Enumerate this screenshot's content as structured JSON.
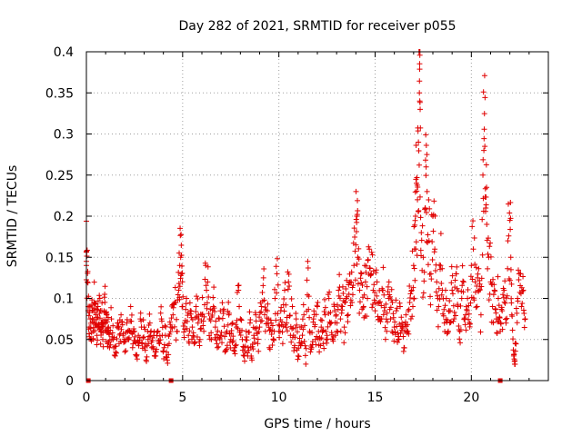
{
  "chart_data": {
    "type": "scatter",
    "title": "Day 282 of 2021, SRMTID for receiver p055",
    "xlabel": "GPS time / hours",
    "ylabel": "SRMTID / TECUs",
    "xlim": [
      0,
      24
    ],
    "ylim": [
      0,
      0.4
    ],
    "x_ticks": [
      0,
      5,
      10,
      15,
      20
    ],
    "x_tick_labels": [
      "0",
      "5",
      "10",
      "15",
      "20"
    ],
    "y_ticks": [
      0,
      0.05,
      0.1,
      0.15,
      0.2,
      0.25,
      0.3,
      0.35,
      0.4
    ],
    "y_tick_labels": [
      "0",
      "0.05",
      "0.1",
      "0.15",
      "0.2",
      "0.25",
      "0.3",
      "0.35",
      "0.4"
    ],
    "grid": true,
    "marker": "+",
    "color": "#e00000",
    "gap_markers_x": [
      0.1,
      4.4,
      21.5
    ],
    "series": [
      {
        "name": "SRMTID",
        "points": [
          [
            0.0,
            0.14
          ],
          [
            0.0,
            0.145
          ],
          [
            0.05,
            0.12
          ],
          [
            0.1,
            0.09
          ],
          [
            0.15,
            0.065
          ],
          [
            0.2,
            0.075
          ],
          [
            0.25,
            0.05
          ],
          [
            0.3,
            0.085
          ],
          [
            0.35,
            0.06
          ],
          [
            0.4,
            0.095
          ],
          [
            0.45,
            0.07
          ],
          [
            0.5,
            0.08
          ],
          [
            0.55,
            0.055
          ],
          [
            0.6,
            0.09
          ],
          [
            0.65,
            0.065
          ],
          [
            0.7,
            0.1
          ],
          [
            0.75,
            0.06
          ],
          [
            0.8,
            0.085
          ],
          [
            0.85,
            0.05
          ],
          [
            0.9,
            0.07
          ],
          [
            0.95,
            0.105
          ],
          [
            1.0,
            0.06
          ],
          [
            1.05,
            0.08
          ],
          [
            1.1,
            0.045
          ],
          [
            1.15,
            0.065
          ],
          [
            1.2,
            0.04
          ],
          [
            1.3,
            0.075
          ],
          [
            1.4,
            0.05
          ],
          [
            1.5,
            0.03
          ],
          [
            1.6,
            0.065
          ],
          [
            1.7,
            0.045
          ],
          [
            1.8,
            0.08
          ],
          [
            1.9,
            0.055
          ],
          [
            2.0,
            0.035
          ],
          [
            2.1,
            0.07
          ],
          [
            2.2,
            0.05
          ],
          [
            2.3,
            0.09
          ],
          [
            2.4,
            0.04
          ],
          [
            2.5,
            0.06
          ],
          [
            2.6,
            0.03
          ],
          [
            2.7,
            0.055
          ],
          [
            2.8,
            0.075
          ],
          [
            2.9,
            0.045
          ],
          [
            3.0,
            0.065
          ],
          [
            3.1,
            0.025
          ],
          [
            3.2,
            0.05
          ],
          [
            3.3,
            0.07
          ],
          [
            3.4,
            0.04
          ],
          [
            3.5,
            0.055
          ],
          [
            3.6,
            0.03
          ],
          [
            3.7,
            0.06
          ],
          [
            3.8,
            0.045
          ],
          [
            3.9,
            0.075
          ],
          [
            4.0,
            0.035
          ],
          [
            4.1,
            0.055
          ],
          [
            4.2,
            0.025
          ],
          [
            4.3,
            0.045
          ],
          [
            4.4,
            0.065
          ],
          [
            4.5,
            0.08
          ],
          [
            4.6,
            0.095
          ],
          [
            4.7,
            0.06
          ],
          [
            4.8,
            0.11
          ],
          [
            4.85,
            0.14
          ],
          [
            4.9,
            0.15
          ],
          [
            4.95,
            0.13
          ],
          [
            5.0,
            0.09
          ],
          [
            5.1,
            0.07
          ],
          [
            5.2,
            0.1
          ],
          [
            5.3,
            0.055
          ],
          [
            5.4,
            0.085
          ],
          [
            5.5,
            0.065
          ],
          [
            5.6,
            0.045
          ],
          [
            5.7,
            0.09
          ],
          [
            5.8,
            0.07
          ],
          [
            5.9,
            0.05
          ],
          [
            6.0,
            0.08
          ],
          [
            6.1,
            0.06
          ],
          [
            6.2,
            0.14
          ],
          [
            6.3,
            0.12
          ],
          [
            6.4,
            0.075
          ],
          [
            6.5,
            0.05
          ],
          [
            6.6,
            0.09
          ],
          [
            6.7,
            0.065
          ],
          [
            6.8,
            0.04
          ],
          [
            6.9,
            0.075
          ],
          [
            7.0,
            0.055
          ],
          [
            7.1,
            0.085
          ],
          [
            7.2,
            0.035
          ],
          [
            7.3,
            0.06
          ],
          [
            7.4,
            0.08
          ],
          [
            7.5,
            0.05
          ],
          [
            7.6,
            0.07
          ],
          [
            7.7,
            0.04
          ],
          [
            7.8,
            0.065
          ],
          [
            7.9,
            0.11
          ],
          [
            8.0,
            0.075
          ],
          [
            8.1,
            0.05
          ],
          [
            8.2,
            0.03
          ],
          [
            8.3,
            0.06
          ],
          [
            8.4,
            0.04
          ],
          [
            8.5,
            0.07
          ],
          [
            8.6,
            0.025
          ],
          [
            8.7,
            0.055
          ],
          [
            8.8,
            0.08
          ],
          [
            8.9,
            0.045
          ],
          [
            9.0,
            0.065
          ],
          [
            9.1,
            0.09
          ],
          [
            9.2,
            0.125
          ],
          [
            9.3,
            0.06
          ],
          [
            9.4,
            0.085
          ],
          [
            9.5,
            0.04
          ],
          [
            9.6,
            0.07
          ],
          [
            9.7,
            0.05
          ],
          [
            9.8,
            0.1
          ],
          [
            9.9,
            0.13
          ],
          [
            10.0,
            0.06
          ],
          [
            10.1,
            0.085
          ],
          [
            10.2,
            0.045
          ],
          [
            10.3,
            0.11
          ],
          [
            10.4,
            0.07
          ],
          [
            10.5,
            0.12
          ],
          [
            10.6,
            0.055
          ],
          [
            10.7,
            0.09
          ],
          [
            10.8,
            0.04
          ],
          [
            10.9,
            0.075
          ],
          [
            11.0,
            0.03
          ],
          [
            11.1,
            0.065
          ],
          [
            11.2,
            0.045
          ],
          [
            11.3,
            0.08
          ],
          [
            11.4,
            0.02
          ],
          [
            11.5,
            0.145
          ],
          [
            11.6,
            0.06
          ],
          [
            11.7,
            0.04
          ],
          [
            11.8,
            0.075
          ],
          [
            11.9,
            0.05
          ],
          [
            12.0,
            0.09
          ],
          [
            12.1,
            0.035
          ],
          [
            12.2,
            0.065
          ],
          [
            12.3,
            0.045
          ],
          [
            12.4,
            0.08
          ],
          [
            12.5,
            0.055
          ],
          [
            12.6,
            0.1
          ],
          [
            12.7,
            0.07
          ],
          [
            12.8,
            0.05
          ],
          [
            12.9,
            0.085
          ],
          [
            13.0,
            0.06
          ],
          [
            13.1,
            0.11
          ],
          [
            13.2,
            0.075
          ],
          [
            13.3,
            0.09
          ],
          [
            13.4,
            0.065
          ],
          [
            13.5,
            0.1
          ],
          [
            13.6,
            0.08
          ],
          [
            13.7,
            0.12
          ],
          [
            13.8,
            0.095
          ],
          [
            13.9,
            0.14
          ],
          [
            14.0,
            0.165
          ],
          [
            14.05,
            0.2
          ],
          [
            14.1,
            0.15
          ],
          [
            14.2,
            0.11
          ],
          [
            14.3,
            0.13
          ],
          [
            14.4,
            0.09
          ],
          [
            14.5,
            0.12
          ],
          [
            14.6,
            0.1
          ],
          [
            14.7,
            0.16
          ],
          [
            14.8,
            0.13
          ],
          [
            14.9,
            0.11
          ],
          [
            15.0,
            0.085
          ],
          [
            15.1,
            0.12
          ],
          [
            15.2,
            0.095
          ],
          [
            15.3,
            0.075
          ],
          [
            15.4,
            0.11
          ],
          [
            15.5,
            0.085
          ],
          [
            15.6,
            0.06
          ],
          [
            15.7,
            0.1
          ],
          [
            15.8,
            0.075
          ],
          [
            15.9,
            0.095
          ],
          [
            16.0,
            0.065
          ],
          [
            16.1,
            0.085
          ],
          [
            16.2,
            0.05
          ],
          [
            16.3,
            0.09
          ],
          [
            16.4,
            0.07
          ],
          [
            16.5,
            0.04
          ],
          [
            16.6,
            0.08
          ],
          [
            16.7,
            0.06
          ],
          [
            16.8,
            0.095
          ],
          [
            16.9,
            0.11
          ],
          [
            17.0,
            0.14
          ],
          [
            17.05,
            0.16
          ],
          [
            17.1,
            0.2
          ],
          [
            17.15,
            0.24
          ],
          [
            17.2,
            0.22
          ],
          [
            17.25,
            0.29
          ],
          [
            17.3,
            0.35
          ],
          [
            17.32,
            0.34
          ],
          [
            17.34,
            0.33
          ],
          [
            17.4,
            0.18
          ],
          [
            17.5,
            0.15
          ],
          [
            17.6,
            0.21
          ],
          [
            17.65,
            0.26
          ],
          [
            17.7,
            0.23
          ],
          [
            17.8,
            0.17
          ],
          [
            17.9,
            0.13
          ],
          [
            18.0,
            0.2
          ],
          [
            18.1,
            0.16
          ],
          [
            18.2,
            0.12
          ],
          [
            18.3,
            0.09
          ],
          [
            18.4,
            0.14
          ],
          [
            18.5,
            0.11
          ],
          [
            18.6,
            0.07
          ],
          [
            18.7,
            0.1
          ],
          [
            18.8,
            0.06
          ],
          [
            18.9,
            0.085
          ],
          [
            19.0,
            0.11
          ],
          [
            19.1,
            0.075
          ],
          [
            19.2,
            0.13
          ],
          [
            19.3,
            0.09
          ],
          [
            19.4,
            0.06
          ],
          [
            19.5,
            0.1
          ],
          [
            19.6,
            0.12
          ],
          [
            19.7,
            0.08
          ],
          [
            19.8,
            0.1
          ],
          [
            19.9,
            0.07
          ],
          [
            20.0,
            0.14
          ],
          [
            20.1,
            0.16
          ],
          [
            20.2,
            0.12
          ],
          [
            20.3,
            0.09
          ],
          [
            20.4,
            0.11
          ],
          [
            20.5,
            0.08
          ],
          [
            20.6,
            0.25
          ],
          [
            20.65,
            0.28
          ],
          [
            20.7,
            0.285
          ],
          [
            20.75,
            0.21
          ],
          [
            20.8,
            0.19
          ],
          [
            20.9,
            0.15
          ],
          [
            21.0,
            0.12
          ],
          [
            21.1,
            0.09
          ],
          [
            21.2,
            0.11
          ],
          [
            21.3,
            0.075
          ],
          [
            21.4,
            0.1
          ],
          [
            21.5,
            0.06
          ],
          [
            21.6,
            0.085
          ],
          [
            21.7,
            0.11
          ],
          [
            21.8,
            0.07
          ],
          [
            21.9,
            0.17
          ],
          [
            22.0,
            0.195
          ],
          [
            22.05,
            0.15
          ],
          [
            22.1,
            0.08
          ],
          [
            22.2,
            0.03
          ],
          [
            22.25,
            0.02
          ],
          [
            22.3,
            0.045
          ],
          [
            22.4,
            0.1
          ],
          [
            22.5,
            0.13
          ],
          [
            22.6,
            0.09
          ],
          [
            22.7,
            0.11
          ],
          [
            22.8,
            0.075
          ]
        ]
      }
    ]
  }
}
